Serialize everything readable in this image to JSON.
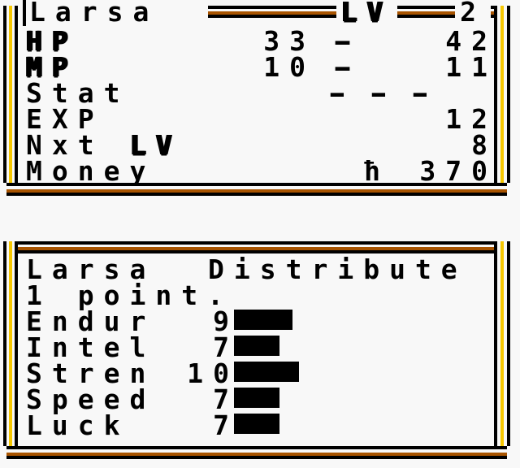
{
  "colors": {
    "background": "#f8f8f8",
    "ink": "#000000",
    "gold": "#f6c700",
    "rust": "#a85400"
  },
  "status_panel": {
    "name": "Larsa",
    "level_label": "LV",
    "level_value": "2",
    "hp": {
      "label": "HP",
      "current": "33",
      "separator": "-",
      "max": "42"
    },
    "mp": {
      "label": "MP",
      "current": "10",
      "separator": "-",
      "max": "11"
    },
    "stat": {
      "label": "Stat",
      "value": "---"
    },
    "exp": {
      "label": "EXP",
      "value": "12"
    },
    "next_level": {
      "label": "Nxt",
      "level_label": "LV",
      "value": "8"
    },
    "money": {
      "label": "Money",
      "currency_symbol": "ħ",
      "value": "370"
    }
  },
  "distribute_panel": {
    "name": "Larsa",
    "action_label": "Distribute",
    "points_line": "1 point.",
    "stats": [
      {
        "label": "Endur",
        "value": 9
      },
      {
        "label": "Intel",
        "value": 7
      },
      {
        "label": "Stren",
        "value": 10
      },
      {
        "label": "Speed",
        "value": 7
      },
      {
        "label": "Luck",
        "value": 7
      }
    ]
  }
}
